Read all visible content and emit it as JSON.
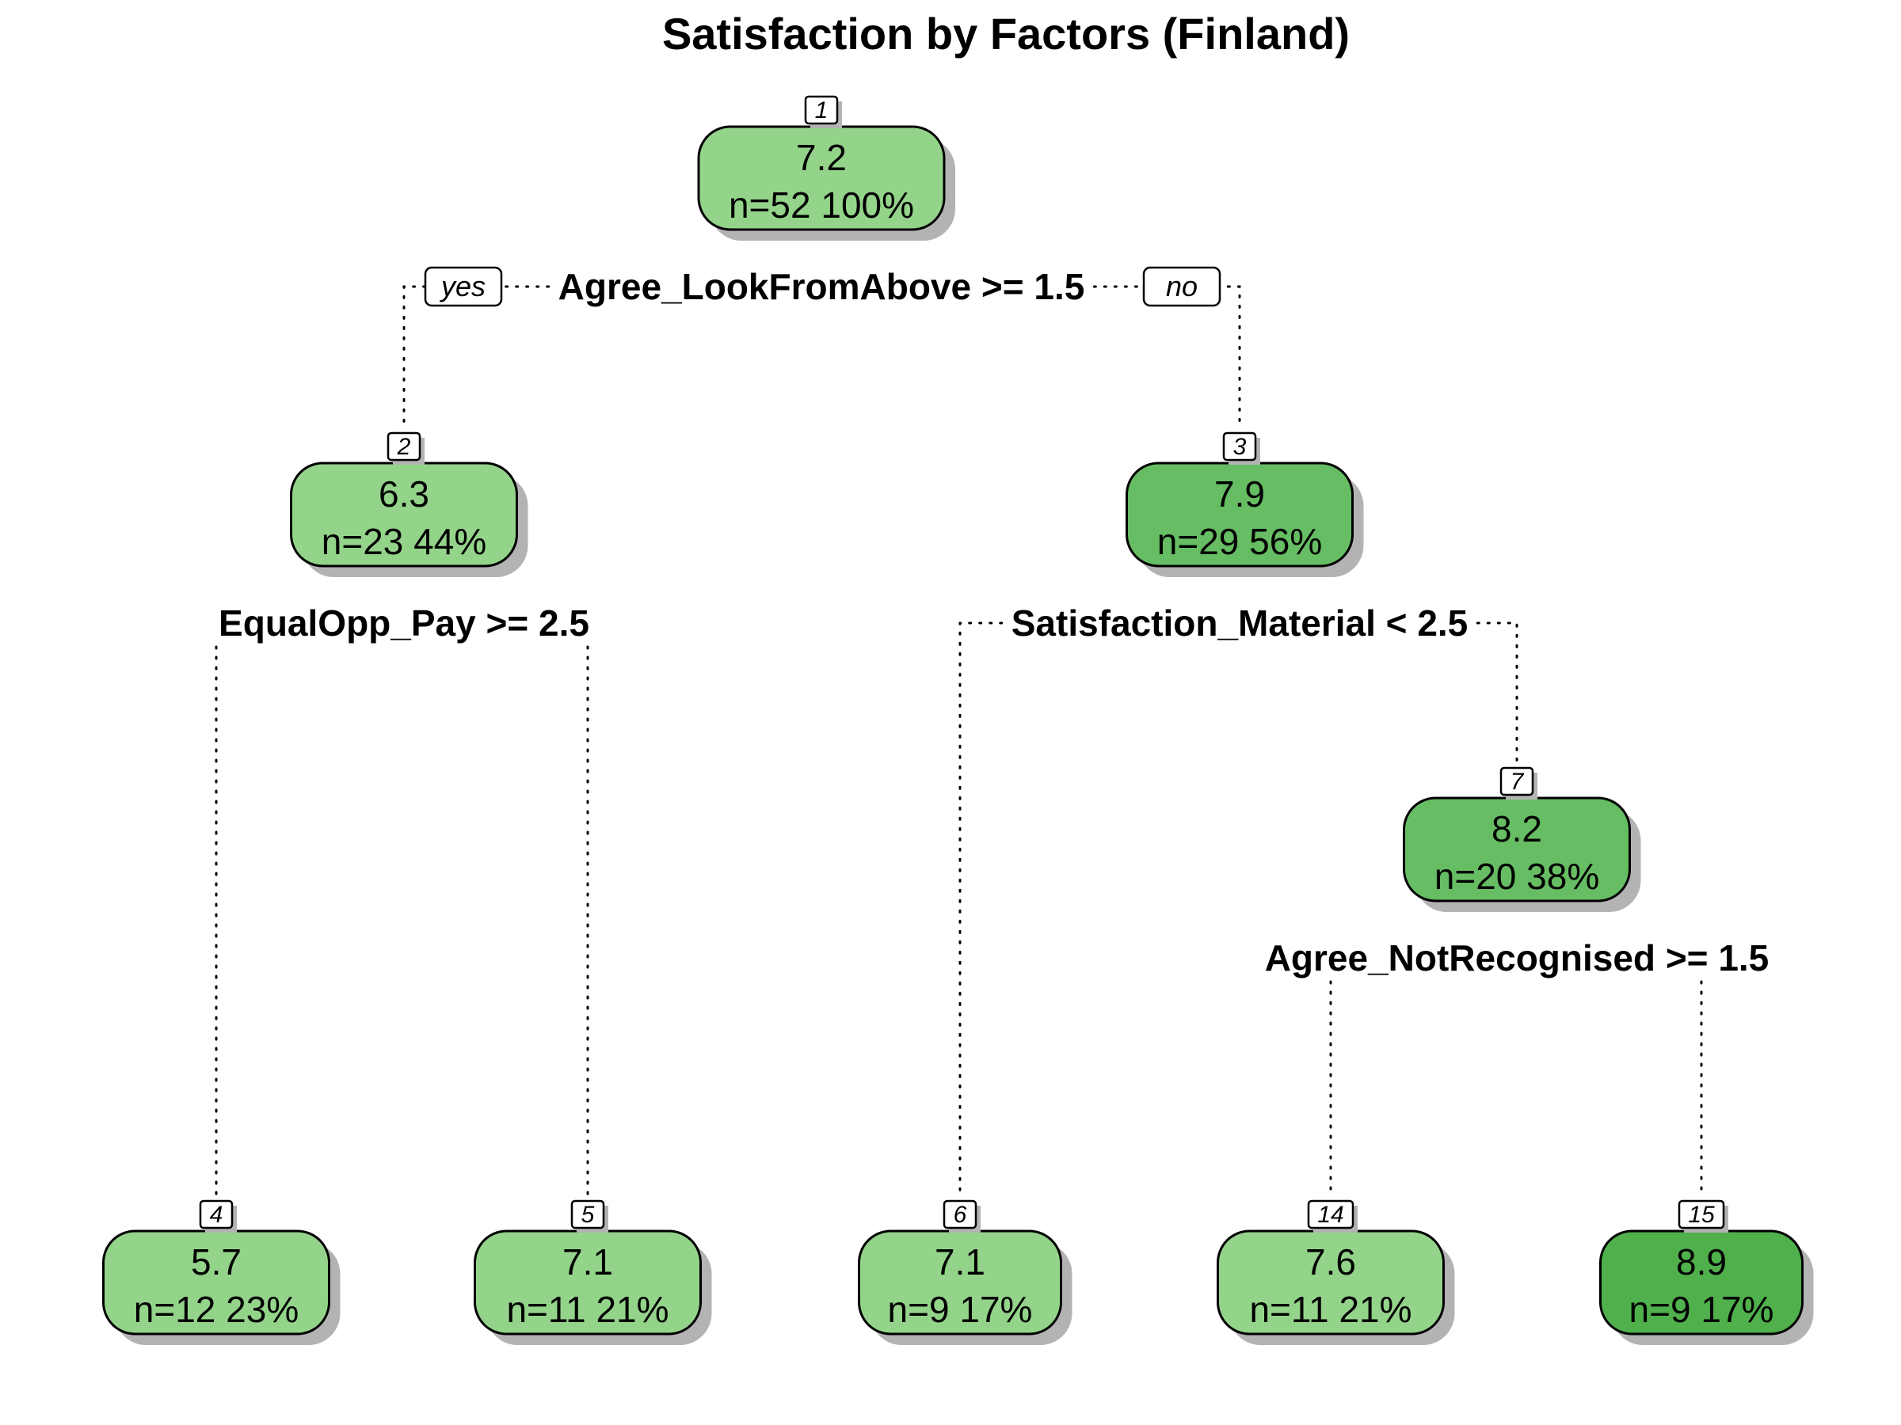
{
  "title": "Satisfaction by Factors (Finland)",
  "colors": {
    "light": "#94d48a",
    "mid": "#66bd63",
    "dark": "#4fb04c"
  },
  "branch_labels": {
    "yes": "yes",
    "no": "no"
  },
  "nodes": [
    {
      "id": "1",
      "num": "1",
      "value": "7.2",
      "stats": "n=52  100%",
      "color": "light",
      "split": "Agree_LookFromAbove >= 1.5"
    },
    {
      "id": "2",
      "num": "2",
      "value": "6.3",
      "stats": "n=23  44%",
      "color": "light",
      "split": "EqualOpp_Pay >= 2.5"
    },
    {
      "id": "3",
      "num": "3",
      "value": "7.9",
      "stats": "n=29  56%",
      "color": "mid",
      "split": "Satisfaction_Material < 2.5"
    },
    {
      "id": "7",
      "num": "7",
      "value": "8.2",
      "stats": "n=20  38%",
      "color": "mid",
      "split": "Agree_NotRecognised >= 1.5"
    },
    {
      "id": "4",
      "num": "4",
      "value": "5.7",
      "stats": "n=12  23%",
      "color": "light",
      "split": ""
    },
    {
      "id": "5",
      "num": "5",
      "value": "7.1",
      "stats": "n=11  21%",
      "color": "light",
      "split": ""
    },
    {
      "id": "6",
      "num": "6",
      "value": "7.1",
      "stats": "n=9  17%",
      "color": "light",
      "split": ""
    },
    {
      "id": "14",
      "num": "14",
      "value": "7.6",
      "stats": "n=11  21%",
      "color": "light",
      "split": ""
    },
    {
      "id": "15",
      "num": "15",
      "value": "8.9",
      "stats": "n=9  17%",
      "color": "dark",
      "split": ""
    }
  ],
  "edges": [
    {
      "from": "1",
      "to": "2"
    },
    {
      "from": "1",
      "to": "3"
    },
    {
      "from": "2",
      "to": "4"
    },
    {
      "from": "2",
      "to": "5"
    },
    {
      "from": "3",
      "to": "6"
    },
    {
      "from": "3",
      "to": "7"
    },
    {
      "from": "7",
      "to": "14"
    },
    {
      "from": "7",
      "to": "15"
    }
  ]
}
